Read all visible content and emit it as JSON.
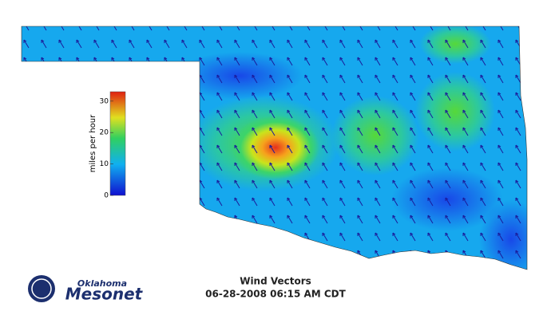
{
  "header": {
    "title": "Wind Vectors",
    "timestamp": "06-28-2008 06:15 AM CDT"
  },
  "logo": {
    "top": "Oklahoma",
    "bottom": "Mesonet"
  },
  "legend": {
    "label": "miles per hour",
    "lim": [
      0,
      33
    ],
    "ticks": [
      0,
      10,
      20,
      30
    ]
  }
}
